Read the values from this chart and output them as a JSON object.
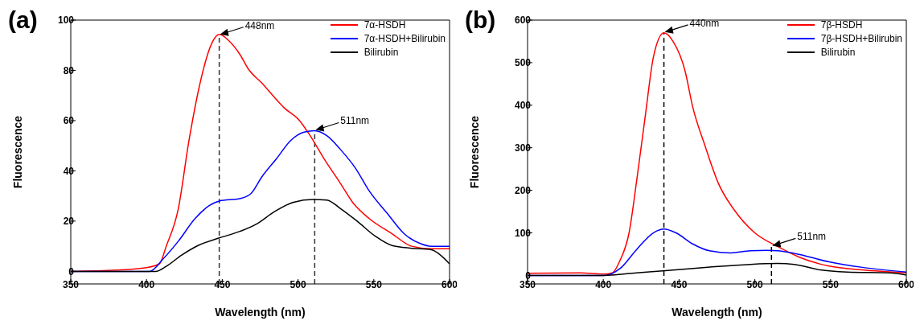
{
  "chart_data": [
    {
      "type": "line",
      "title": "(a)",
      "xlabel": "Wavelength (nm)",
      "ylabel": "Fluorescence",
      "xlim": [
        350,
        600
      ],
      "xticks": [
        350,
        400,
        450,
        500,
        550,
        600
      ],
      "ylim": [
        -5,
        100
      ],
      "yticks": [
        0,
        20,
        40,
        60,
        80,
        100
      ],
      "legend": "top right",
      "series": [
        {
          "name": "7α-HSDH",
          "color": "#ff0000",
          "x": [
            350,
            380,
            400,
            408.5,
            413,
            421,
            428,
            435,
            443,
            448,
            454,
            462,
            467,
            476,
            491,
            501,
            508,
            517,
            528,
            536,
            547,
            562,
            575,
            588,
            600
          ],
          "values": [
            0,
            0.5,
            1.5,
            3,
            10,
            25,
            52,
            74,
            90.7,
            94.3,
            92,
            86,
            80.7,
            75,
            65,
            60,
            54,
            45,
            35,
            27.5,
            21,
            15,
            10,
            9,
            9
          ]
        },
        {
          "name": "7α-HSDH+Bilirubin",
          "color": "#0000ff",
          "x": [
            350,
            402,
            411,
            421,
            432,
            441,
            448,
            462,
            469,
            476,
            486,
            495,
            504,
            511,
            519,
            528,
            538,
            547,
            559,
            570,
            581,
            588,
            600
          ],
          "values": [
            0,
            0,
            5,
            12,
            21,
            26,
            28,
            29,
            31,
            37.5,
            45,
            52,
            55.4,
            56,
            54,
            48.5,
            41,
            32,
            23,
            15,
            11,
            10,
            10
          ]
        },
        {
          "name": "Bilirubin",
          "color": "#000000",
          "x": [
            350,
            406,
            413,
            423,
            434,
            448,
            462,
            473,
            484,
            497,
            510,
            519,
            528,
            539,
            551,
            562,
            575,
            588,
            593,
            600
          ],
          "values": [
            0,
            0,
            2,
            6.4,
            10.3,
            13.3,
            16,
            19,
            23.6,
            27.5,
            28.6,
            28.4,
            25,
            20,
            14,
            10.3,
            9.2,
            8.6,
            7,
            3
          ]
        }
      ],
      "ref_lines": [
        {
          "axis": "x",
          "value": 448,
          "color": "#333333",
          "line_style": "dashed"
        },
        {
          "axis": "x",
          "value": 511,
          "color": "#333333",
          "line_style": "dashed"
        }
      ],
      "annotations": [
        {
          "text": "448nm",
          "x": 448,
          "y": 94
        },
        {
          "text": "511nm",
          "x": 511,
          "y": 56
        }
      ]
    },
    {
      "type": "line",
      "title": "(b)",
      "xlabel": "Wavelength (nm)",
      "ylabel": "Fluorescence",
      "xlim": [
        350,
        600
      ],
      "xticks": [
        350,
        400,
        450,
        500,
        550,
        600
      ],
      "ylim": [
        -20,
        600
      ],
      "yticks": [
        0,
        100,
        200,
        300,
        400,
        500,
        600
      ],
      "legend": "top right",
      "series": [
        {
          "name": "7β-HSDH",
          "color": "#ff0000",
          "x": [
            350,
            385,
            400,
            406,
            411,
            417,
            422,
            428,
            433,
            440,
            446,
            454,
            459,
            467,
            476,
            487,
            500,
            515,
            530,
            549,
            571,
            600
          ],
          "values": [
            5,
            6,
            3,
            6,
            35,
            100,
            222,
            383,
            512,
            570,
            550,
            480,
            396,
            306,
            216,
            151,
            100,
            68,
            42,
            22,
            13,
            6
          ]
        },
        {
          "name": "7β-HSDH+Bilirubin",
          "color": "#0000ff",
          "x": [
            350,
            400,
            411,
            422,
            433,
            440,
            448,
            459,
            470,
            484,
            497,
            508,
            515,
            526,
            549,
            571,
            600
          ],
          "values": [
            0,
            0,
            16,
            61,
            100,
            109,
            100,
            74,
            58,
            53,
            58,
            59,
            58,
            52,
            32,
            19,
            8
          ]
        },
        {
          "name": "Bilirubin",
          "color": "#000000",
          "x": [
            350,
            400,
            422,
            441,
            469,
            497,
            515,
            526,
            543,
            561,
            589,
            600
          ],
          "values": [
            0,
            0,
            6,
            11,
            19,
            26,
            28,
            26,
            13,
            8,
            6,
            1
          ]
        }
      ],
      "ref_lines": [
        {
          "axis": "x",
          "value": 440,
          "color": "#000000",
          "line_style": "dashed"
        },
        {
          "axis": "x",
          "value": 511,
          "color": "#000000",
          "line_style": "dashed"
        }
      ],
      "annotations": [
        {
          "text": "440nm",
          "x": 440,
          "y": 570
        },
        {
          "text": "511nm",
          "x": 511,
          "y": 68
        }
      ]
    }
  ]
}
